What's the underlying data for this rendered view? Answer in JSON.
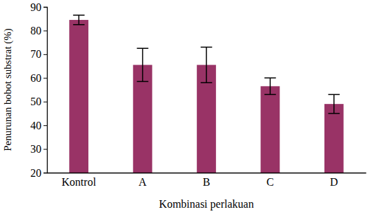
{
  "chart_data": {
    "type": "bar",
    "x_label": "Kombinasi perlakuan",
    "y_label": "Penurunan bobot substrat (%)",
    "categories": [
      "Kontrol",
      "A",
      "B",
      "C",
      "D"
    ],
    "values": [
      84.5,
      65.5,
      65.5,
      56.5,
      49
    ],
    "errors": [
      2,
      7,
      7.5,
      3.5,
      4
    ],
    "color": "#993366",
    "ylim": [
      20,
      90
    ],
    "yticks": [
      20,
      30,
      40,
      50,
      60,
      70,
      80,
      90
    ],
    "grid": false
  }
}
